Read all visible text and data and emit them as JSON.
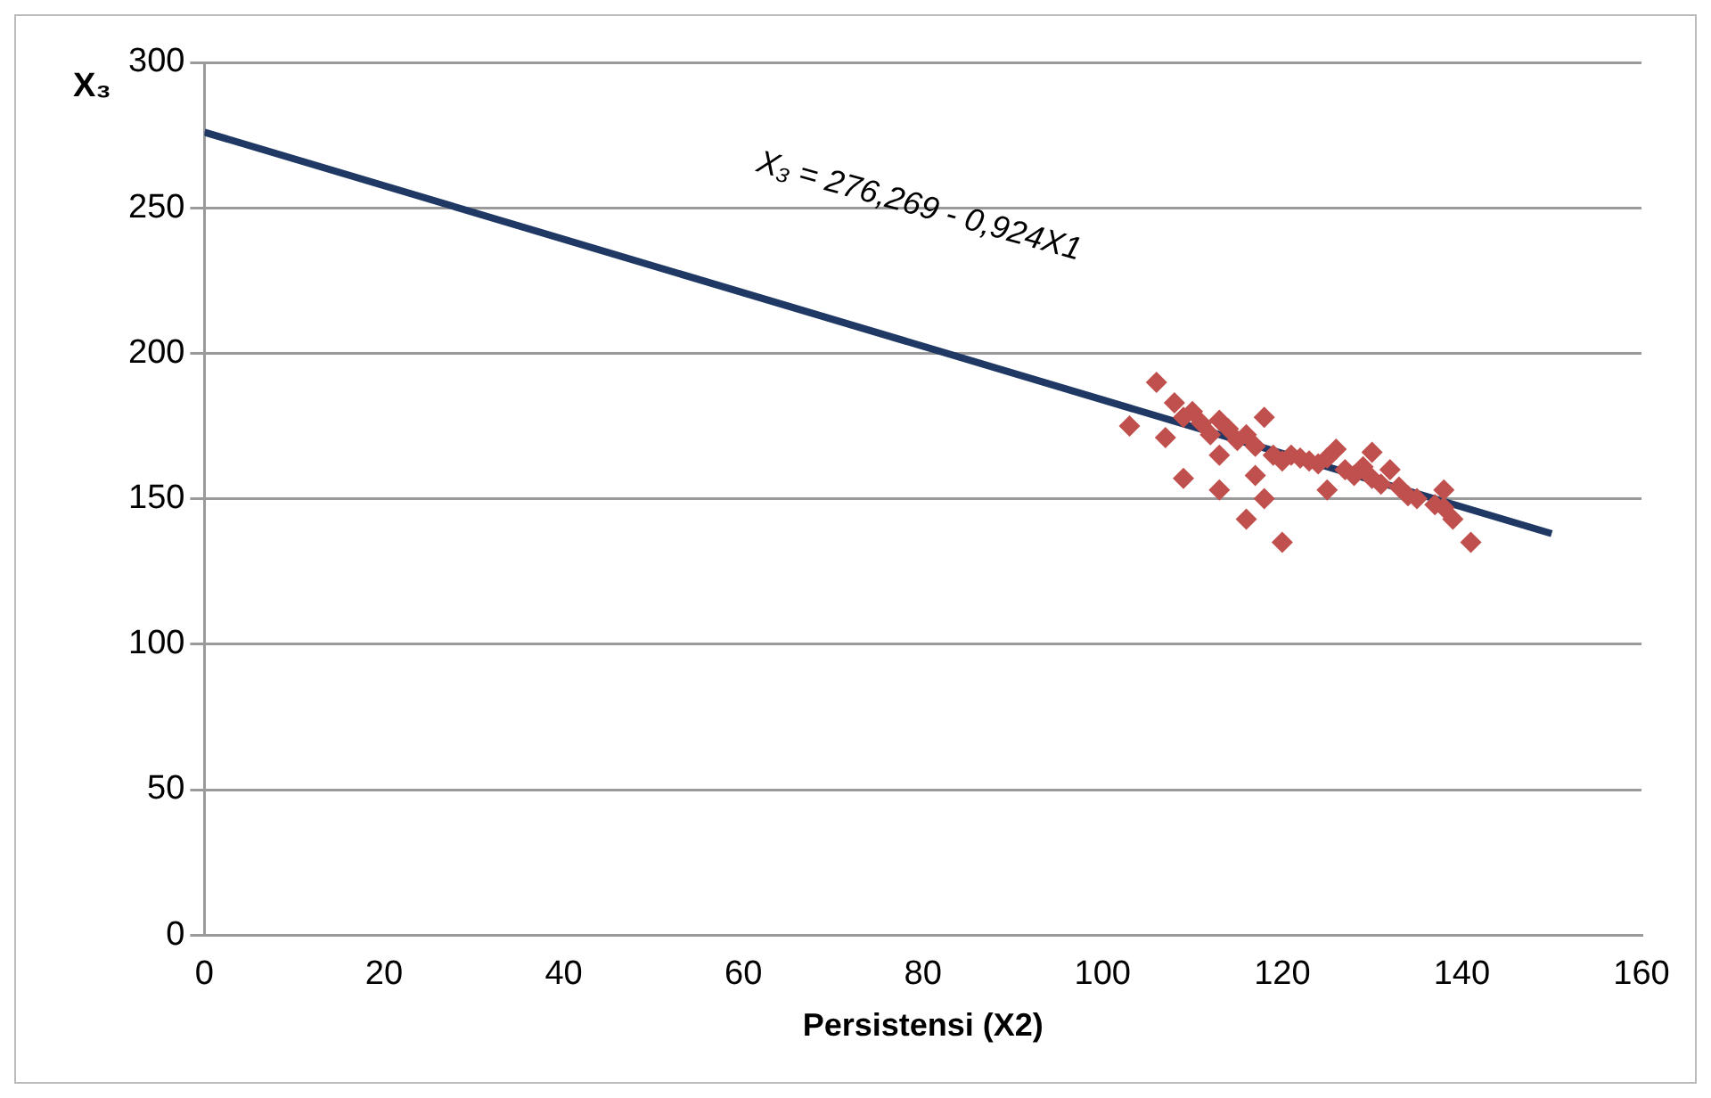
{
  "chart_data": {
    "type": "scatter",
    "xlabel": "Persistensi (X2)",
    "ylabel": "X₃",
    "xlim": [
      0,
      160
    ],
    "xticks": [
      0,
      20,
      40,
      60,
      80,
      100,
      120,
      140,
      160
    ],
    "ylim": [
      0,
      300
    ],
    "yticks": [
      0,
      50,
      100,
      150,
      200,
      250,
      300
    ],
    "grid": "y",
    "legend": false,
    "marker": "diamond",
    "annotations": [
      "X₃ = 276,269 - 0,924X1"
    ],
    "series": [
      {
        "color": "#c0504d",
        "x": [
          103,
          106,
          107,
          108,
          109,
          109,
          110,
          111,
          112,
          113,
          113,
          113,
          114,
          115,
          116,
          116,
          117,
          117,
          118,
          118,
          119,
          120,
          120,
          121,
          122,
          123,
          124,
          125,
          125,
          126,
          127,
          128,
          129,
          130,
          130,
          131,
          132,
          133,
          134,
          135,
          137,
          138,
          138,
          139,
          141
        ],
        "values": [
          175,
          190,
          171,
          183,
          157,
          178,
          180,
          176,
          172,
          165,
          153,
          177,
          174,
          170,
          172,
          143,
          158,
          168,
          178,
          150,
          165,
          135,
          163,
          165,
          164,
          163,
          162,
          153,
          164,
          167,
          160,
          158,
          161,
          166,
          157,
          155,
          160,
          154,
          151,
          150,
          148,
          153,
          147,
          143,
          135
        ]
      },
      {
        "type": "line",
        "color": "#1f3864",
        "x": [
          0,
          150
        ],
        "values": [
          276,
          138
        ],
        "marker": "none"
      }
    ]
  }
}
